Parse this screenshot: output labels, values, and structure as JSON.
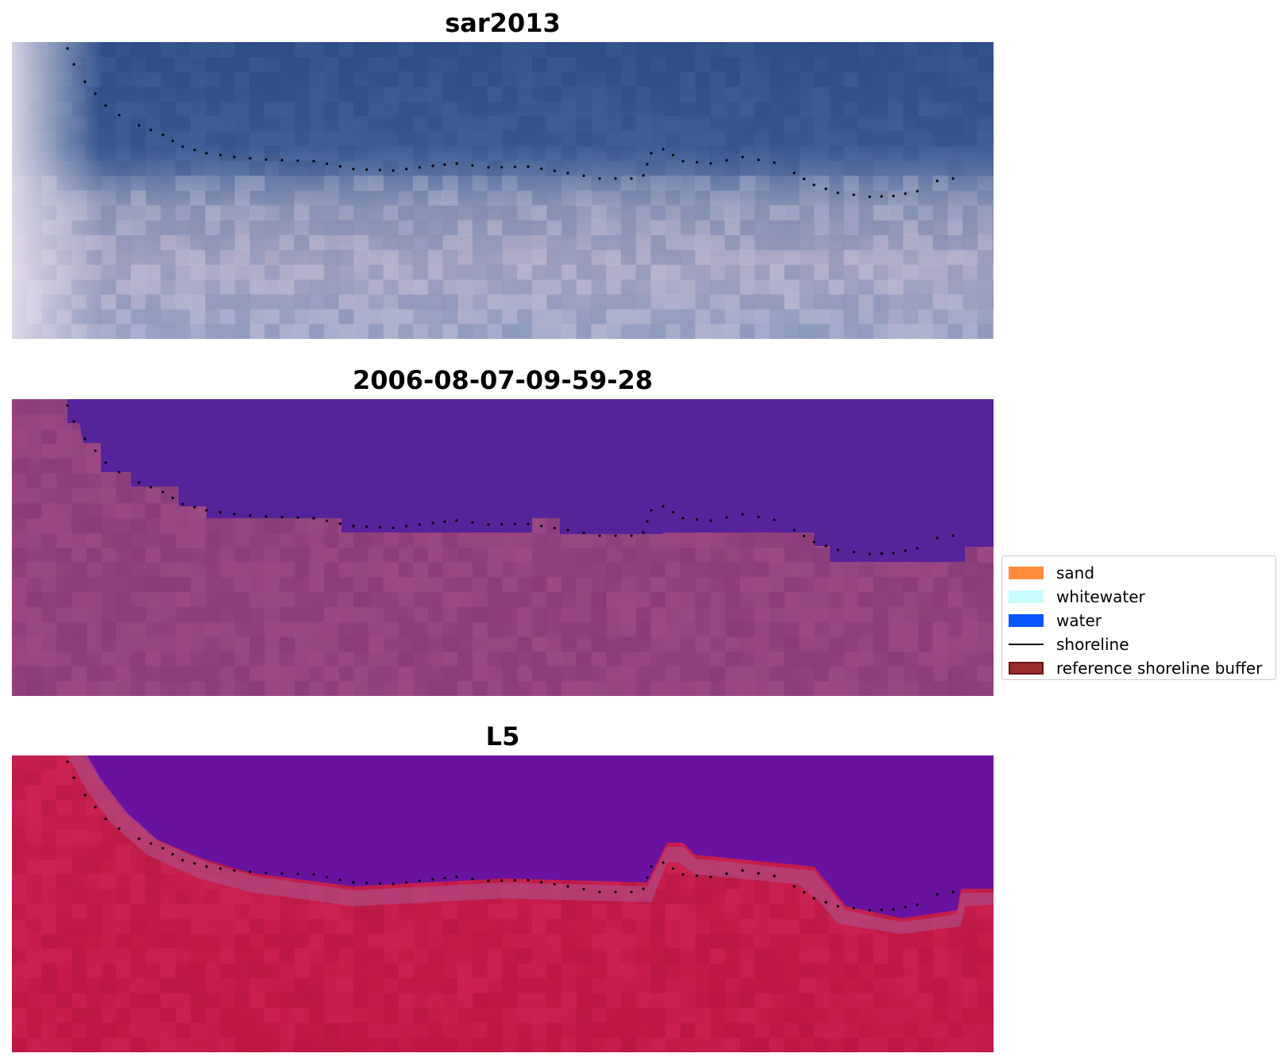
{
  "panels": [
    {
      "title": "sar2013",
      "image": "satellite-rgb",
      "water_color": "#315189",
      "land_color": "#b0a8c3"
    },
    {
      "title": "2006-08-07-09-59-28",
      "image": "classified",
      "water_color": "#55239a",
      "land_color": "#93437f"
    },
    {
      "title": "L5",
      "image": "index",
      "water_color": "#5c0d9f",
      "land_color": "#c41a4a"
    }
  ],
  "legend": {
    "items": [
      {
        "label": "sand",
        "color": "#ff8c3a",
        "kind": "patch",
        "icon": "sand-swatch"
      },
      {
        "label": "whitewater",
        "color": "#c9fcfc",
        "kind": "patch",
        "icon": "whitewater-swatch"
      },
      {
        "label": "water",
        "color": "#0a56ff",
        "kind": "patch",
        "icon": "water-swatch"
      },
      {
        "label": "shoreline",
        "color": "#000000",
        "kind": "line",
        "icon": "shoreline-swatch"
      },
      {
        "label": "reference shoreline buffer",
        "color": "#9b2d2d",
        "border": "#6b1010",
        "kind": "patch",
        "icon": "buffer-swatch"
      }
    ]
  }
}
